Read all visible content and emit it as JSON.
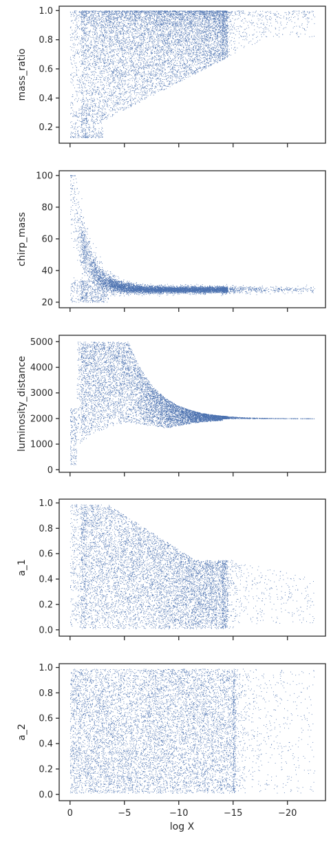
{
  "chart_data": [
    {
      "type": "scatter",
      "ylabel": "mass_ratio",
      "xlabel": "",
      "xlim": [
        1,
        -23.5
      ],
      "ylim": [
        0.09,
        1.03
      ],
      "x_ticks": [
        0,
        -5,
        -10,
        -15,
        -20
      ],
      "x_tick_labels": [],
      "y_ticks": [
        0.2,
        0.4,
        0.6,
        0.8,
        1.0
      ],
      "y_tick_labels": [
        "0.2",
        "0.4",
        "0.6",
        "0.8",
        "1.0"
      ],
      "color": "#4c72b0",
      "grid": false,
      "description_points": [
        [
          0.0,
          1.0
        ],
        [
          -5,
          0.99
        ],
        [
          -10,
          0.99
        ],
        [
          -15,
          0.98
        ],
        [
          -18,
          0.9
        ],
        [
          -22.5,
          0.83
        ],
        [
          1.0,
          0.13
        ],
        [
          2.6,
          0.13
        ],
        [
          -5,
          0.16
        ],
        [
          -10,
          0.35
        ],
        [
          -15,
          0.6
        ],
        [
          -18,
          0.75
        ]
      ]
    },
    {
      "type": "scatter",
      "ylabel": "chirp_mass",
      "xlabel": "",
      "xlim": [
        1,
        -23.5
      ],
      "ylim": [
        16.5,
        103
      ],
      "x_ticks": [
        0,
        -5,
        -10,
        -15,
        -20
      ],
      "x_tick_labels": [],
      "y_ticks": [
        20,
        40,
        60,
        80,
        100
      ],
      "y_tick_labels": [
        "20",
        "40",
        "60",
        "80",
        "100"
      ],
      "color": "#4c72b0",
      "grid": false,
      "description_points": [
        [
          0.1,
          100
        ],
        [
          1.0,
          100
        ],
        [
          -1,
          70
        ],
        [
          -2,
          45
        ],
        [
          -3,
          36
        ],
        [
          -5,
          31
        ],
        [
          -10,
          29
        ],
        [
          -15,
          28.5
        ],
        [
          -20,
          28.3
        ],
        [
          -22.5,
          28.2
        ],
        [
          -1.5,
          20.5
        ],
        [
          -4,
          25
        ]
      ]
    },
    {
      "type": "scatter",
      "ylabel": "luminosity_distance",
      "xlabel": "",
      "xlim": [
        1,
        -23.5
      ],
      "ylim": [
        -100,
        5250
      ],
      "x_ticks": [
        0,
        -5,
        -10,
        -15,
        -20
      ],
      "x_tick_labels": [],
      "y_ticks": [
        0,
        1000,
        2000,
        3000,
        4000,
        5000
      ],
      "y_tick_labels": [
        "0",
        "1000",
        "2000",
        "3000",
        "4000",
        "5000"
      ],
      "color": "#4c72b0",
      "grid": false,
      "description_points": [
        [
          0.0,
          200
        ],
        [
          -0.5,
          3000
        ],
        [
          -1,
          5000
        ],
        [
          -5,
          5000
        ],
        [
          -8,
          3500
        ],
        [
          -10,
          2500
        ],
        [
          -15,
          2100
        ],
        [
          -20,
          2030
        ],
        [
          -22.5,
          2020
        ],
        [
          -8,
          1600
        ],
        [
          -12,
          1800
        ]
      ]
    },
    {
      "type": "scatter",
      "ylabel": "a_1",
      "xlabel": "",
      "xlim": [
        1,
        -23.5
      ],
      "ylim": [
        -0.05,
        1.03
      ],
      "x_ticks": [
        0,
        -5,
        -10,
        -15,
        -20
      ],
      "x_tick_labels": [],
      "y_ticks": [
        0.0,
        0.2,
        0.4,
        0.6,
        0.8,
        1.0
      ],
      "y_tick_labels": [
        "0.0",
        "0.2",
        "0.4",
        "0.6",
        "0.8",
        "1.0"
      ],
      "color": "#4c72b0",
      "grid": false,
      "description_points": [
        [
          0.0,
          0.99
        ],
        [
          -3.5,
          0.98
        ],
        [
          -5,
          0.8
        ],
        [
          -8,
          0.64
        ],
        [
          -12,
          0.58
        ],
        [
          -15,
          0.55
        ],
        [
          -18,
          0.5
        ],
        [
          -22.5,
          0.43
        ],
        [
          -15,
          0.1
        ],
        [
          -16,
          0.01
        ],
        [
          -18,
          0.2
        ]
      ]
    },
    {
      "type": "scatter",
      "ylabel": "a_2",
      "xlabel": "log X",
      "xlim": [
        1,
        -23.5
      ],
      "ylim": [
        -0.05,
        1.03
      ],
      "x_ticks": [
        0,
        -5,
        -10,
        -15,
        -20
      ],
      "x_tick_labels": [
        "0",
        "−5",
        "−10",
        "−15",
        "−20"
      ],
      "y_ticks": [
        0.0,
        0.2,
        0.4,
        0.6,
        0.8,
        1.0
      ],
      "y_tick_labels": [
        "0.0",
        "0.2",
        "0.4",
        "0.6",
        "0.8",
        "1.0"
      ],
      "color": "#4c72b0",
      "grid": false,
      "description_points": [
        [
          0.0,
          0.99
        ],
        [
          -15,
          0.99
        ],
        [
          -15.5,
          0.01
        ],
        [
          -17,
          0.5
        ],
        [
          -18,
          0.4
        ],
        [
          -19.5,
          0.4
        ],
        [
          -22.5,
          0.25
        ],
        [
          -18,
          0.02
        ]
      ]
    }
  ]
}
